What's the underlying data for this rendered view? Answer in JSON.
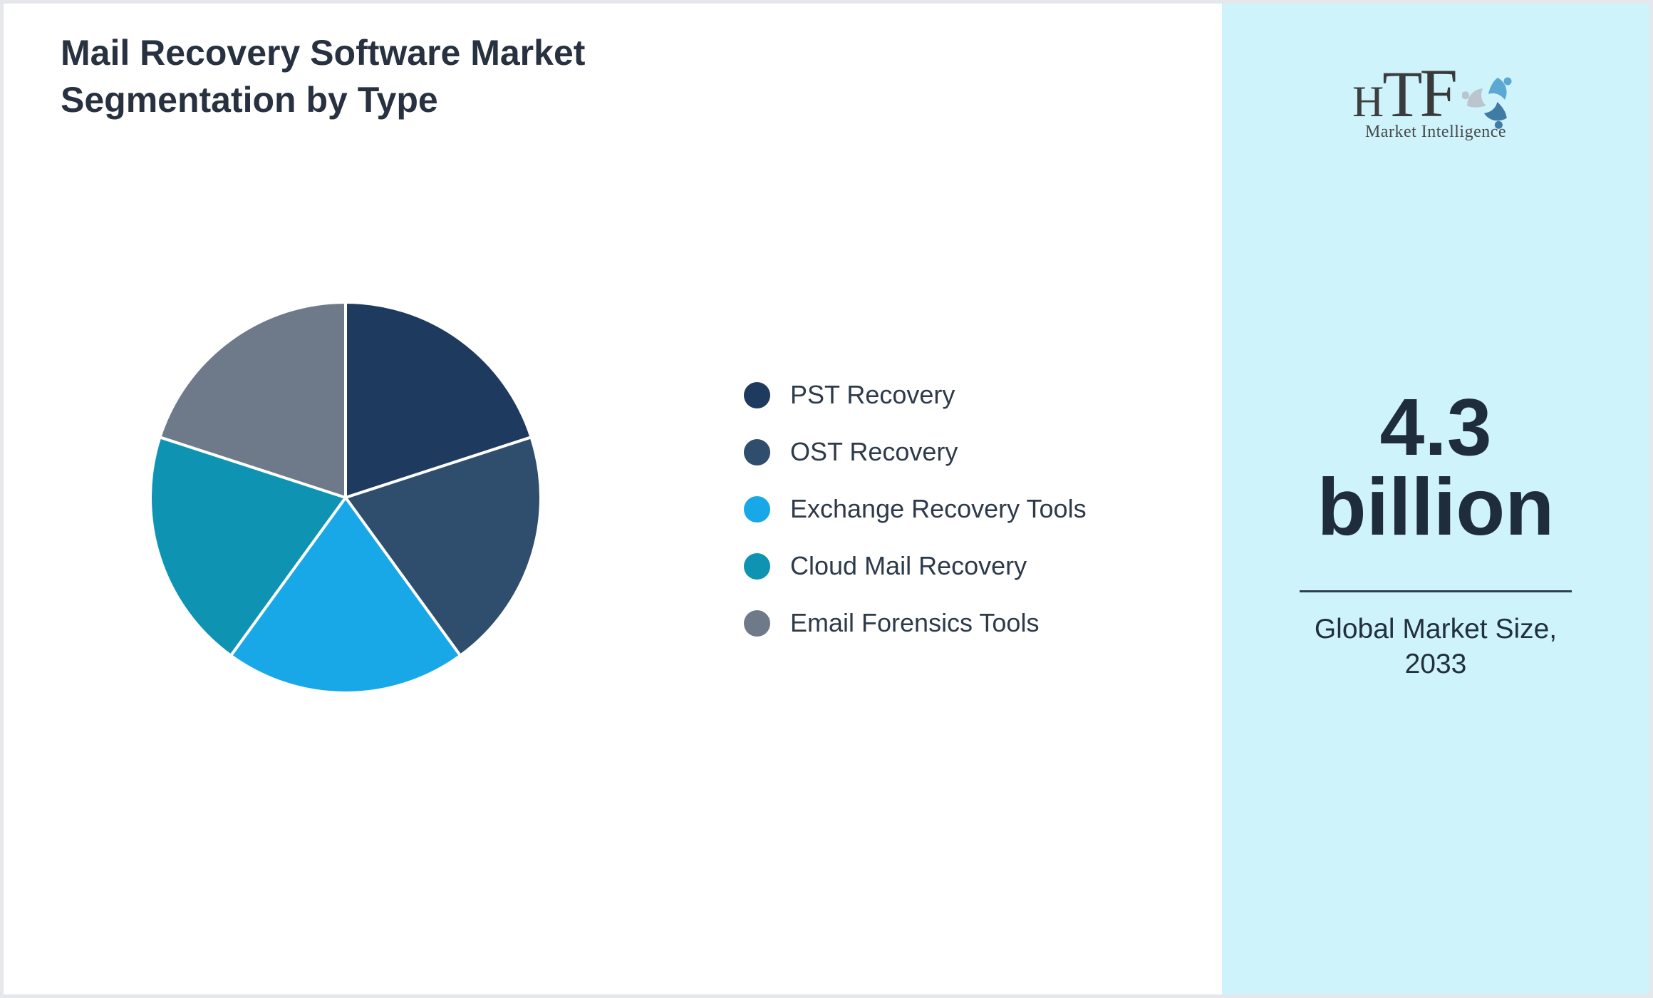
{
  "title": "Mail Recovery Software Market Segmentation by Type",
  "chart_data": {
    "type": "pie",
    "title": "Mail Recovery Software Market Segmentation by Type",
    "labels": [
      "PST Recovery",
      "OST Recovery",
      "Exchange Recovery Tools",
      "Cloud Mail Recovery",
      "Email Forensics Tools"
    ],
    "values": [
      20,
      20,
      20,
      20,
      20
    ],
    "values_note": "no numeric labels shown in chart; five slices appear visually equal (~20% each)",
    "colors": [
      "#1e3a5f",
      "#2f4d6d",
      "#18a8e8",
      "#0f93b2",
      "#6e7a8a"
    ],
    "start_angle_deg": 0,
    "direction": "clockwise",
    "legend_position": "right",
    "slice_border_color": "#ffffff"
  },
  "sidebar": {
    "background": "#cff3fa",
    "value": "4.3",
    "unit": "billion",
    "caption_line1": "Global Market Size,",
    "caption_line2": "2033",
    "text_color": "#1f2c3b",
    "divider_color": "#2e3f51"
  },
  "logo": {
    "h": "H",
    "t": "T",
    "f": "F",
    "subtitle": "Market Intelligence",
    "swirl_colors": [
      "#5ba8d5",
      "#3f7ba5",
      "#bac5ce"
    ]
  },
  "colors": {
    "page_background": "#ffffff",
    "page_border": "#e6e7eb",
    "title_text": "#273140",
    "legend_text": "#2c3a4a"
  }
}
